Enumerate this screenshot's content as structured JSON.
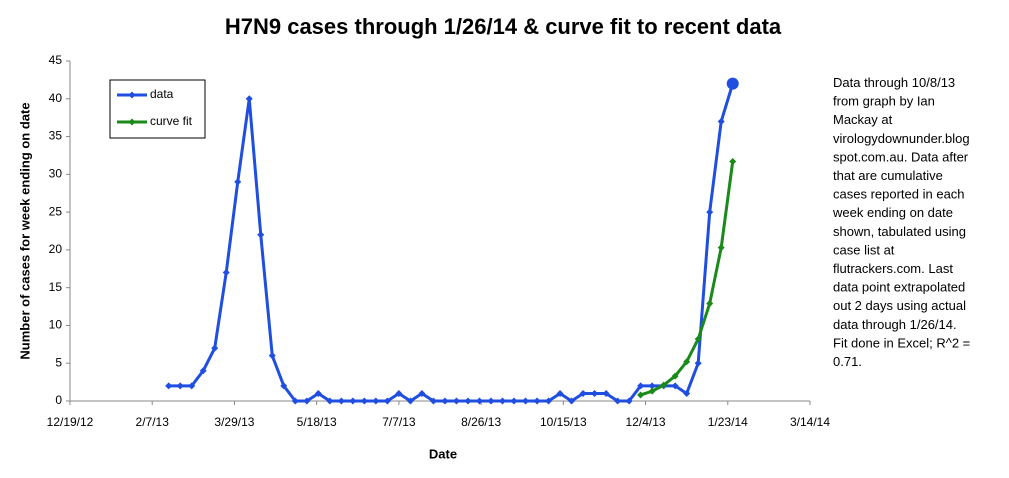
{
  "chart_data": {
    "type": "line",
    "title": "H7N9 cases through 1/26/14 & curve fit to recent data",
    "x_label": "Date",
    "y_label": "Number of cases for week ending on date",
    "xlim": [
      "12/19/12",
      "3/14/14"
    ],
    "xticks": [
      "12/19/12",
      "2/7/13",
      "3/29/13",
      "5/18/13",
      "7/7/13",
      "8/26/13",
      "10/15/13",
      "12/4/13",
      "1/23/14",
      "3/14/14"
    ],
    "ylim": [
      0,
      45
    ],
    "yticks": [
      0,
      5,
      10,
      15,
      20,
      25,
      30,
      35,
      40,
      45
    ],
    "legend": "top-left",
    "series": [
      {
        "name": "data",
        "color": "#1f4ee0",
        "x": [
          "2/17/13",
          "2/24/13",
          "3/3/13",
          "3/10/13",
          "3/17/13",
          "3/24/13",
          "3/31/13",
          "4/7/13",
          "4/14/13",
          "4/21/13",
          "4/28/13",
          "5/5/13",
          "5/12/13",
          "5/19/13",
          "5/26/13",
          "6/2/13",
          "6/9/13",
          "6/16/13",
          "6/23/13",
          "6/30/13",
          "7/7/13",
          "7/14/13",
          "7/21/13",
          "7/28/13",
          "8/4/13",
          "8/11/13",
          "8/18/13",
          "8/25/13",
          "9/1/13",
          "9/8/13",
          "9/15/13",
          "9/22/13",
          "9/29/13",
          "10/6/13",
          "10/13/13",
          "10/20/13",
          "10/27/13",
          "11/3/13",
          "11/10/13",
          "11/17/13",
          "11/24/13",
          "12/1/13",
          "12/8/13",
          "12/15/13",
          "12/22/13",
          "12/29/13",
          "1/5/14",
          "1/12/14",
          "1/19/14",
          "1/26/14"
        ],
        "values": [
          2,
          2,
          2,
          4,
          7,
          17,
          29,
          40,
          22,
          6,
          2,
          0,
          0,
          1,
          0,
          0,
          0,
          0,
          0,
          0,
          1,
          0,
          1,
          0,
          0,
          0,
          0,
          0,
          0,
          0,
          0,
          0,
          0,
          0,
          1,
          0,
          1,
          1,
          1,
          0,
          0,
          2,
          2,
          2,
          2,
          1,
          5,
          25,
          37,
          42
        ]
      },
      {
        "name": "curve fit",
        "color": "#1a8a1a",
        "x": [
          "12/1/13",
          "12/8/13",
          "12/15/13",
          "12/22/13",
          "12/29/13",
          "1/5/14",
          "1/12/14",
          "1/19/14",
          "1/26/14"
        ],
        "values": [
          0.8,
          1.3,
          2.1,
          3.3,
          5.2,
          8.2,
          12.9,
          20.3,
          31.7
        ]
      }
    ],
    "annotation": [
      "Data through 10/8/13",
      "from graph by Ian",
      "Mackay at",
      "virologydownunder.blog",
      "spot.com.au. Data after",
      "that are cumulative",
      "cases reported in each",
      "week ending on date",
      "shown, tabulated using",
      "case list at",
      "flutrackers.com. Last",
      "data point extrapolated",
      "out 2 days using actual",
      "data through 1/26/14.",
      "Fit done in Excel; R^2 =",
      "0.71."
    ]
  }
}
